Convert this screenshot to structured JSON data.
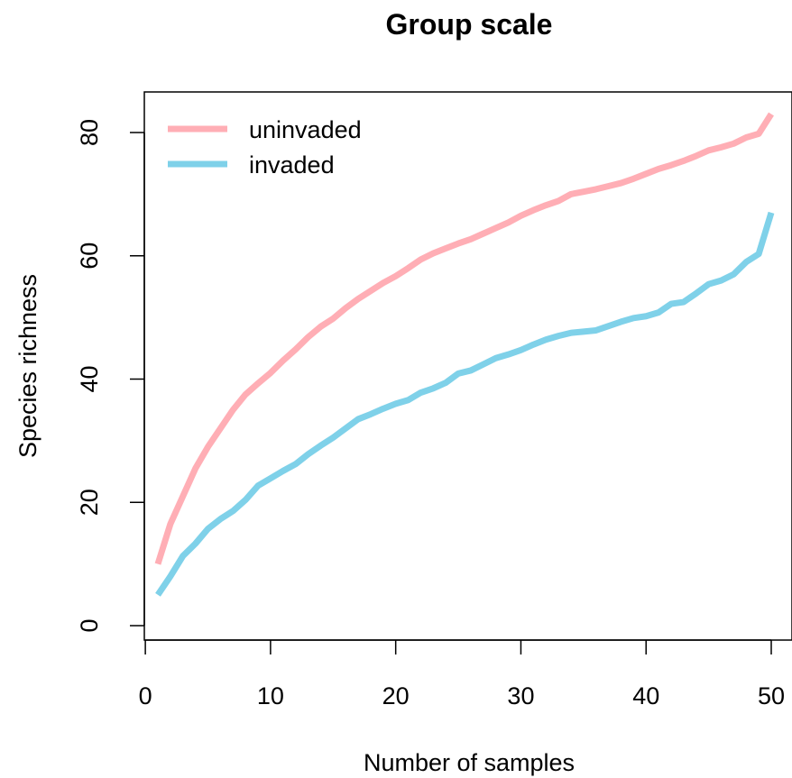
{
  "chart_data": {
    "type": "line",
    "title": "Group scale",
    "xlabel": "Number of samples",
    "ylabel": "Species richness",
    "xlim": [
      0,
      50
    ],
    "ylim": [
      0,
      85
    ],
    "xticks": [
      0,
      10,
      20,
      30,
      40,
      50
    ],
    "yticks": [
      0,
      20,
      40,
      60,
      80
    ],
    "grid": false,
    "legend_position": "top-left",
    "x": [
      1,
      2,
      3,
      4,
      5,
      6,
      7,
      8,
      9,
      10,
      11,
      12,
      13,
      14,
      15,
      16,
      17,
      18,
      19,
      20,
      21,
      22,
      23,
      24,
      25,
      26,
      27,
      28,
      29,
      30,
      31,
      32,
      33,
      34,
      35,
      36,
      37,
      38,
      39,
      40,
      41,
      42,
      43,
      44,
      45,
      46,
      47,
      48,
      49,
      50
    ],
    "series": [
      {
        "name": "uninvaded",
        "color": "#FFAEB5",
        "values": [
          10,
          16.5,
          21,
          25.5,
          29,
          32,
          35,
          37.5,
          39.3,
          41,
          43,
          44.8,
          46.8,
          48.5,
          49.8,
          51.5,
          53,
          54.3,
          55.6,
          56.7,
          58,
          59.4,
          60.4,
          61.2,
          62,
          62.7,
          63.6,
          64.5,
          65.4,
          66.5,
          67.4,
          68.2,
          68.9,
          70,
          70.4,
          70.8,
          71.3,
          71.8,
          72.5,
          73.3,
          74.1,
          74.7,
          75.4,
          76.2,
          77.1,
          77.6,
          78.2,
          79.2,
          79.8,
          83
        ]
      },
      {
        "name": "invaded",
        "color": "#7FD1E9",
        "values": [
          5,
          8,
          11.3,
          13.3,
          15.7,
          17.3,
          18.6,
          20.4,
          22.7,
          23.9,
          25.1,
          26.2,
          27.8,
          29.2,
          30.5,
          32,
          33.5,
          34.3,
          35.2,
          36,
          36.6,
          37.8,
          38.5,
          39.4,
          40.9,
          41.4,
          42.4,
          43.4,
          44,
          44.7,
          45.6,
          46.4,
          47,
          47.5,
          47.7,
          47.9,
          48.6,
          49.3,
          49.9,
          50.2,
          50.8,
          52.2,
          52.5,
          53.9,
          55.4,
          56,
          57,
          59,
          60.3,
          67
        ]
      }
    ]
  }
}
